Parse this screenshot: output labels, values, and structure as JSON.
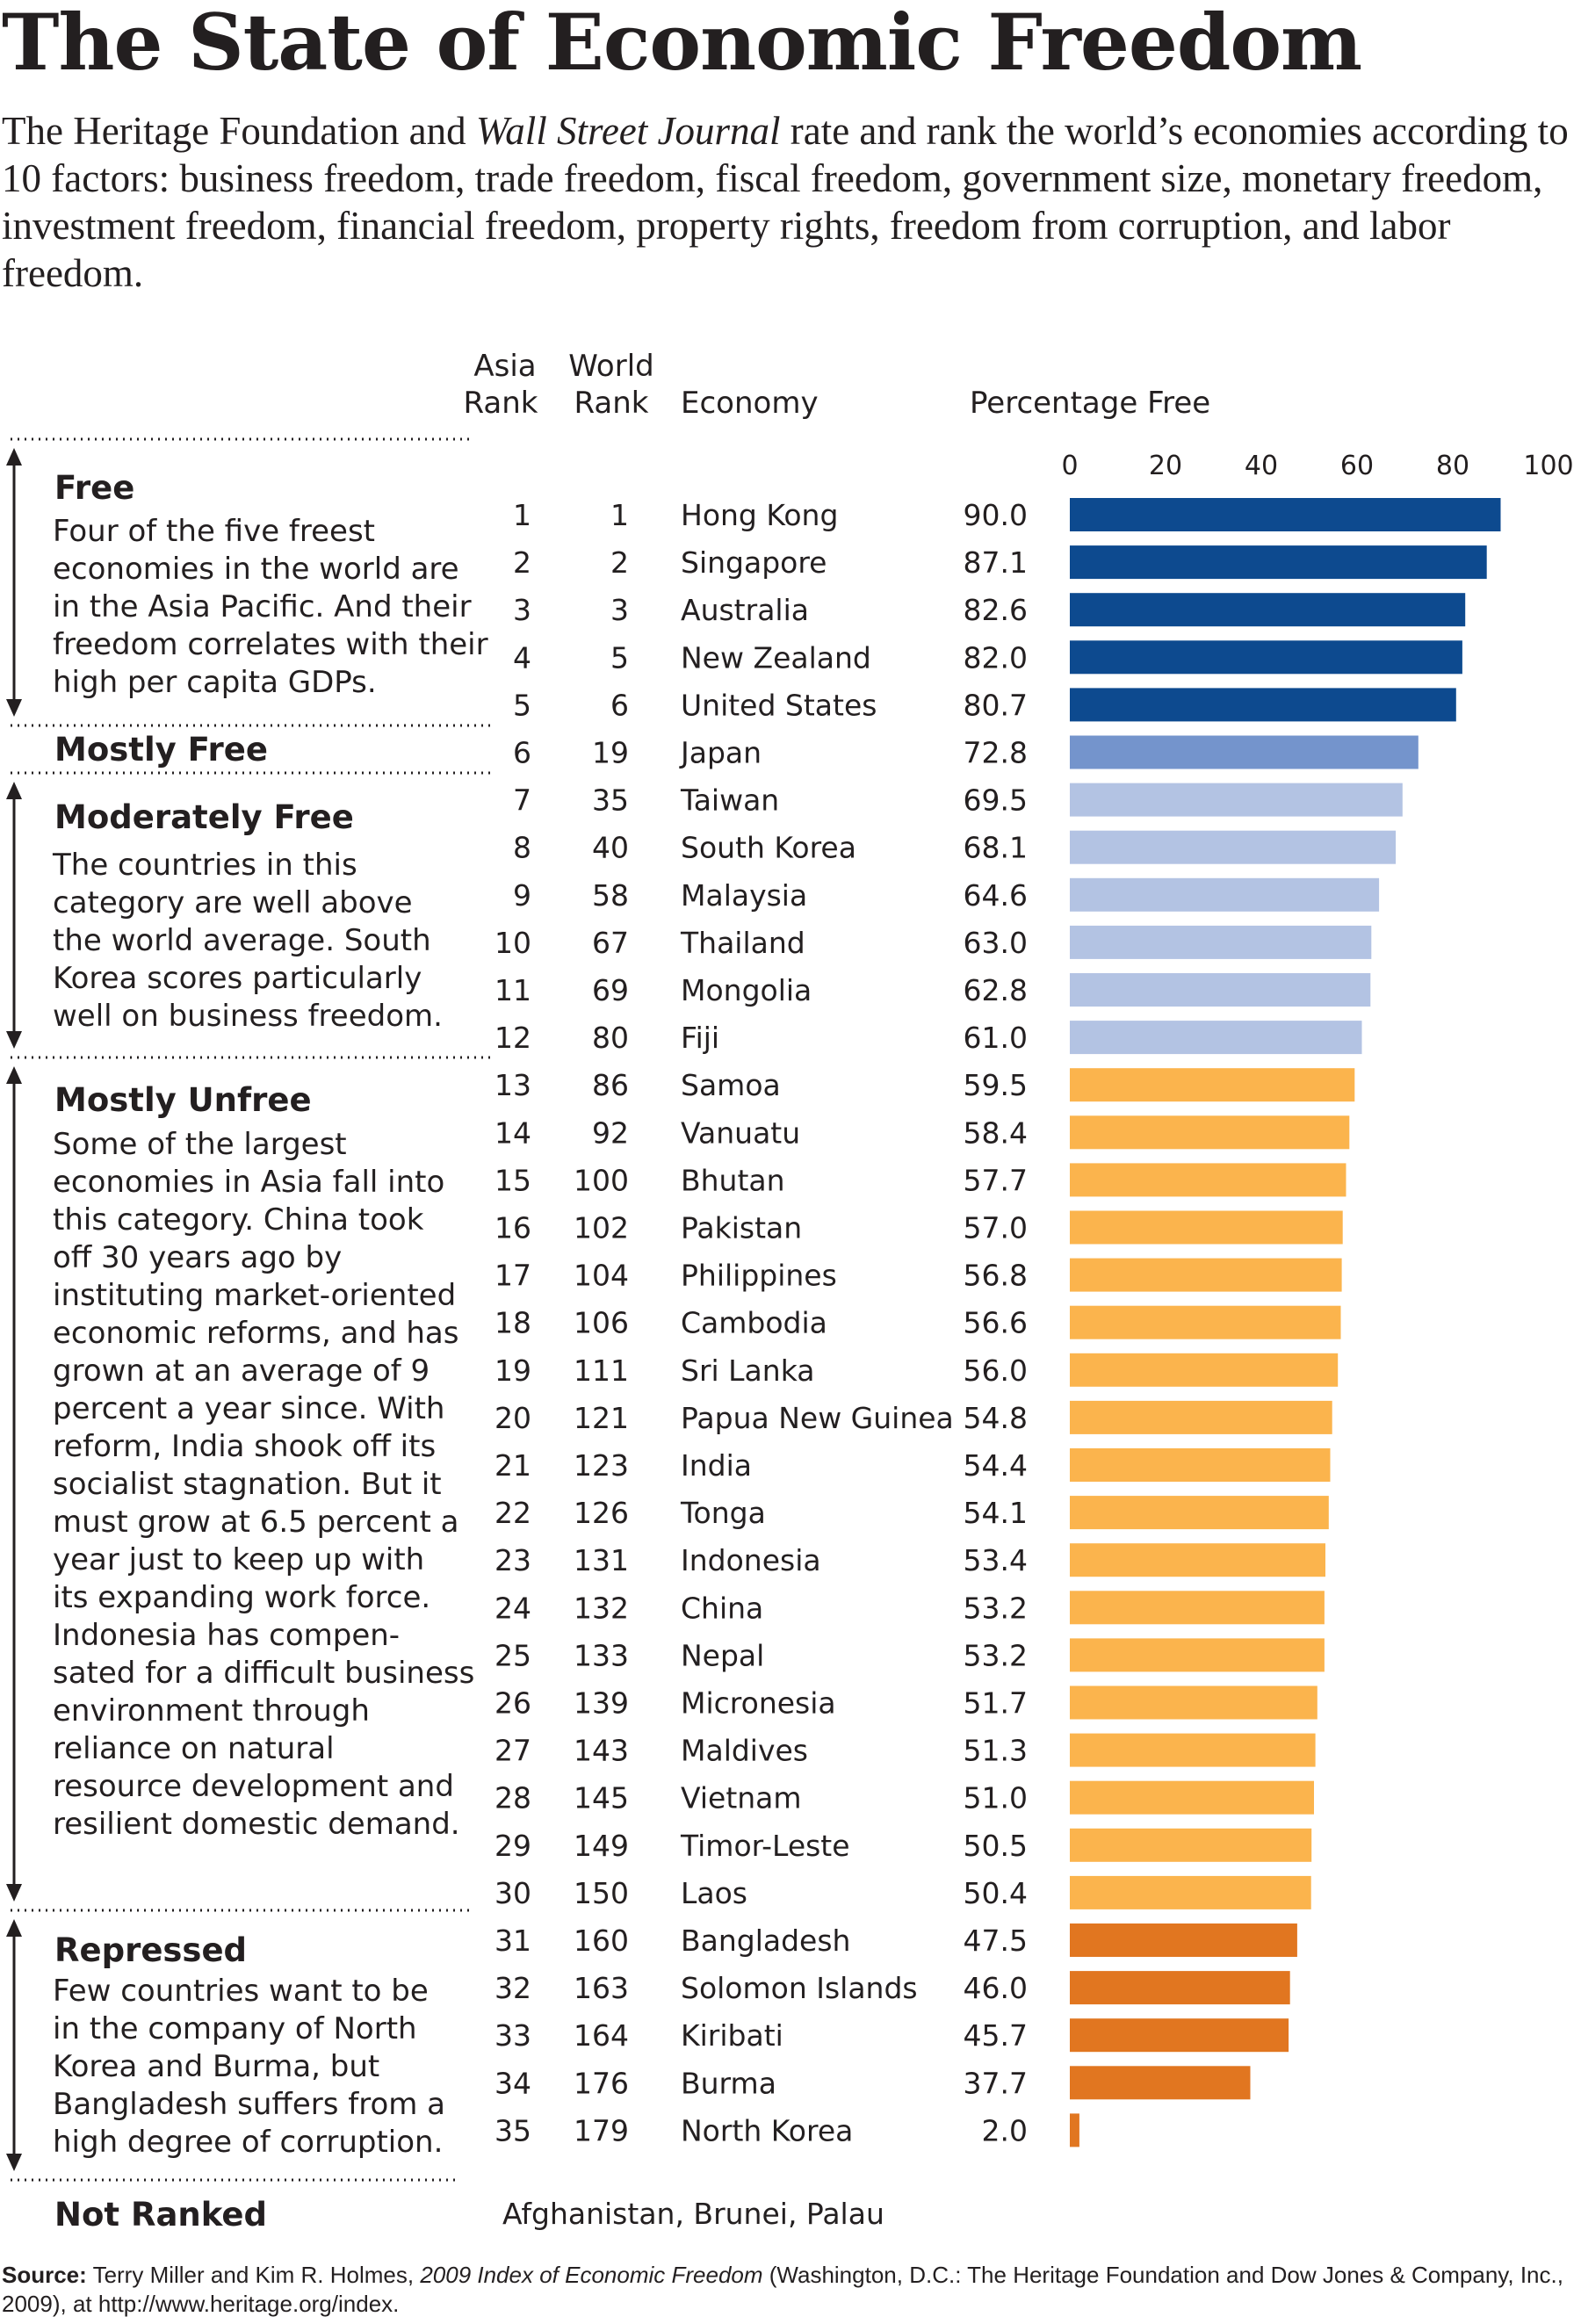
{
  "title": "The State of Economic Freedom",
  "intro": {
    "part1": "The Heritage Foundation and ",
    "publication": "Wall Street Journal",
    "part2": " rate and rank the world’s economies according to 10 factors: business freedom, trade freedom, fiscal freedom, government size, monetary freedom, investment freedom, financial freedom, property rights, freedom from corruption, and labor freedom."
  },
  "headers": {
    "asia_rank": [
      "Asia",
      "Rank"
    ],
    "world_rank": [
      "World",
      "Rank"
    ],
    "economy": "Economy",
    "percentage": "Percentage Free"
  },
  "categories": [
    {
      "key": "free",
      "title": "Free",
      "desc_lines": [
        "Four of the five freest",
        "economies in the world are",
        "in the Asia Pacific. And their",
        "freedom correlates with their",
        "high per capita GDPs."
      ]
    },
    {
      "key": "mostly_free",
      "title": "Mostly Free",
      "desc_lines": []
    },
    {
      "key": "moderately_free",
      "title": "Moderately Free",
      "desc_lines": [
        "The countries in this",
        "category are well above",
        "the world average. South",
        "Korea scores particularly",
        "well on business freedom."
      ]
    },
    {
      "key": "mostly_unfree",
      "title": "Mostly Unfree",
      "desc_lines": [
        "Some of the largest",
        "economies in Asia fall into",
        "this category. China took",
        "off 30 years ago by",
        "instituting market-oriented",
        "economic reforms, and has",
        "grown at an average of 9",
        "percent a year since. With",
        "reform, India shook off its",
        "socialist stagnation.  But it",
        "must grow at 6.5 percent a",
        "year just to keep up with",
        "its expanding work force.",
        "Indonesia has compen-",
        "sated for a difficult business",
        "environment through",
        "reliance on natural",
        "resource development and",
        "resilient domestic demand."
      ]
    },
    {
      "key": "repressed",
      "title": "Repressed",
      "desc_lines": [
        "Few countries want to be",
        "in the company of North",
        "Korea and Burma, but",
        "Bangladesh suffers from a",
        "high degree of corruption."
      ]
    },
    {
      "key": "not_ranked",
      "title": "Not Ranked",
      "desc_lines": []
    }
  ],
  "not_ranked_list": "Afghanistan, Brunei, Palau",
  "colors": {
    "free": "#0d4a8f",
    "mostly_free": "#7494cc",
    "moderately_free": "#b3c3e3",
    "mostly_unfree": "#fbb44d",
    "repressed": "#e17620",
    "text": "#231f20"
  },
  "chart_data": {
    "type": "bar",
    "orientation": "horizontal",
    "xlabel": "Percentage Free",
    "xlim": [
      0,
      100
    ],
    "xticks": [
      0,
      20,
      40,
      60,
      80,
      100
    ],
    "rows": [
      {
        "asia": "1",
        "world": "1",
        "economy": "Hong Kong",
        "value": 90.0,
        "label": "90.0",
        "category": "free"
      },
      {
        "asia": "2",
        "world": "2",
        "economy": "Singapore",
        "value": 87.1,
        "label": "87.1",
        "category": "free"
      },
      {
        "asia": "3",
        "world": "3",
        "economy": "Australia",
        "value": 82.6,
        "label": "82.6",
        "category": "free"
      },
      {
        "asia": "4",
        "world": "5",
        "economy": "New Zealand",
        "value": 82.0,
        "label": "82.0",
        "category": "free"
      },
      {
        "asia": "5",
        "world": "6",
        "economy": "United States",
        "value": 80.7,
        "label": "80.7",
        "category": "free"
      },
      {
        "asia": "6",
        "world": "19",
        "economy": "Japan",
        "value": 72.8,
        "label": "72.8",
        "category": "mostly_free"
      },
      {
        "asia": "7",
        "world": "35",
        "economy": "Taiwan",
        "value": 69.5,
        "label": "69.5",
        "category": "moderately_free"
      },
      {
        "asia": "8",
        "world": "40",
        "economy": "South Korea",
        "value": 68.1,
        "label": "68.1",
        "category": "moderately_free"
      },
      {
        "asia": "9",
        "world": "58",
        "economy": "Malaysia",
        "value": 64.6,
        "label": "64.6",
        "category": "moderately_free"
      },
      {
        "asia": "10",
        "world": "67",
        "economy": "Thailand",
        "value": 63.0,
        "label": "63.0",
        "category": "moderately_free"
      },
      {
        "asia": "11",
        "world": "69",
        "economy": "Mongolia",
        "value": 62.8,
        "label": "62.8",
        "category": "moderately_free"
      },
      {
        "asia": "12",
        "world": "80",
        "economy": "Fiji",
        "value": 61.0,
        "label": "61.0",
        "category": "moderately_free"
      },
      {
        "asia": "13",
        "world": "86",
        "economy": "Samoa",
        "value": 59.5,
        "label": "59.5",
        "category": "mostly_unfree"
      },
      {
        "asia": "14",
        "world": "92",
        "economy": "Vanuatu",
        "value": 58.4,
        "label": "58.4",
        "category": "mostly_unfree"
      },
      {
        "asia": "15",
        "world": "100",
        "economy": "Bhutan",
        "value": 57.7,
        "label": "57.7",
        "category": "mostly_unfree"
      },
      {
        "asia": "16",
        "world": "102",
        "economy": "Pakistan",
        "value": 57.0,
        "label": "57.0",
        "category": "mostly_unfree"
      },
      {
        "asia": "17",
        "world": "104",
        "economy": "Philippines",
        "value": 56.8,
        "label": "56.8",
        "category": "mostly_unfree"
      },
      {
        "asia": "18",
        "world": "106",
        "economy": "Cambodia",
        "value": 56.6,
        "label": "56.6",
        "category": "mostly_unfree"
      },
      {
        "asia": "19",
        "world": "111",
        "economy": "Sri Lanka",
        "value": 56.0,
        "label": "56.0",
        "category": "mostly_unfree"
      },
      {
        "asia": "20",
        "world": "121",
        "economy": "Papua New Guinea",
        "value": 54.8,
        "label": "54.8",
        "category": "mostly_unfree"
      },
      {
        "asia": "21",
        "world": "123",
        "economy": "India",
        "value": 54.4,
        "label": "54.4",
        "category": "mostly_unfree"
      },
      {
        "asia": "22",
        "world": "126",
        "economy": "Tonga",
        "value": 54.1,
        "label": "54.1",
        "category": "mostly_unfree"
      },
      {
        "asia": "23",
        "world": "131",
        "economy": "Indonesia",
        "value": 53.4,
        "label": "53.4",
        "category": "mostly_unfree"
      },
      {
        "asia": "24",
        "world": "132",
        "economy": "China",
        "value": 53.2,
        "label": "53.2",
        "category": "mostly_unfree"
      },
      {
        "asia": "25",
        "world": "133",
        "economy": "Nepal",
        "value": 53.2,
        "label": "53.2",
        "category": "mostly_unfree"
      },
      {
        "asia": "26",
        "world": "139",
        "economy": "Micronesia",
        "value": 51.7,
        "label": "51.7",
        "category": "mostly_unfree"
      },
      {
        "asia": "27",
        "world": "143",
        "economy": "Maldives",
        "value": 51.3,
        "label": "51.3",
        "category": "mostly_unfree"
      },
      {
        "asia": "28",
        "world": "145",
        "economy": "Vietnam",
        "value": 51.0,
        "label": "51.0",
        "category": "mostly_unfree"
      },
      {
        "asia": "29",
        "world": "149",
        "economy": "Timor-Leste",
        "value": 50.5,
        "label": "50.5",
        "category": "mostly_unfree"
      },
      {
        "asia": "30",
        "world": "150",
        "economy": "Laos",
        "value": 50.4,
        "label": "50.4",
        "category": "mostly_unfree"
      },
      {
        "asia": "31",
        "world": "160",
        "economy": "Bangladesh",
        "value": 47.5,
        "label": "47.5",
        "category": "repressed"
      },
      {
        "asia": "32",
        "world": "163",
        "economy": "Solomon Islands",
        "value": 46.0,
        "label": "46.0",
        "category": "repressed"
      },
      {
        "asia": "33",
        "world": "164",
        "economy": "Kiribati",
        "value": 45.7,
        "label": "45.7",
        "category": "repressed"
      },
      {
        "asia": "34",
        "world": "176",
        "economy": "Burma",
        "value": 37.7,
        "label": "37.7",
        "category": "repressed"
      },
      {
        "asia": "35",
        "world": "179",
        "economy": "North Korea",
        "value": 2.0,
        "label": "2.0",
        "category": "repressed"
      }
    ]
  },
  "source": {
    "label": "Source:",
    "authors": " Terry Miller and Kim R. Holmes, ",
    "publication": "2009 Index of Economic Freedom",
    "rest": " (Washington, D.C.: The Heritage Foundation and Dow Jones & Company, Inc., 2009), at http://www.heritage.org/index."
  }
}
